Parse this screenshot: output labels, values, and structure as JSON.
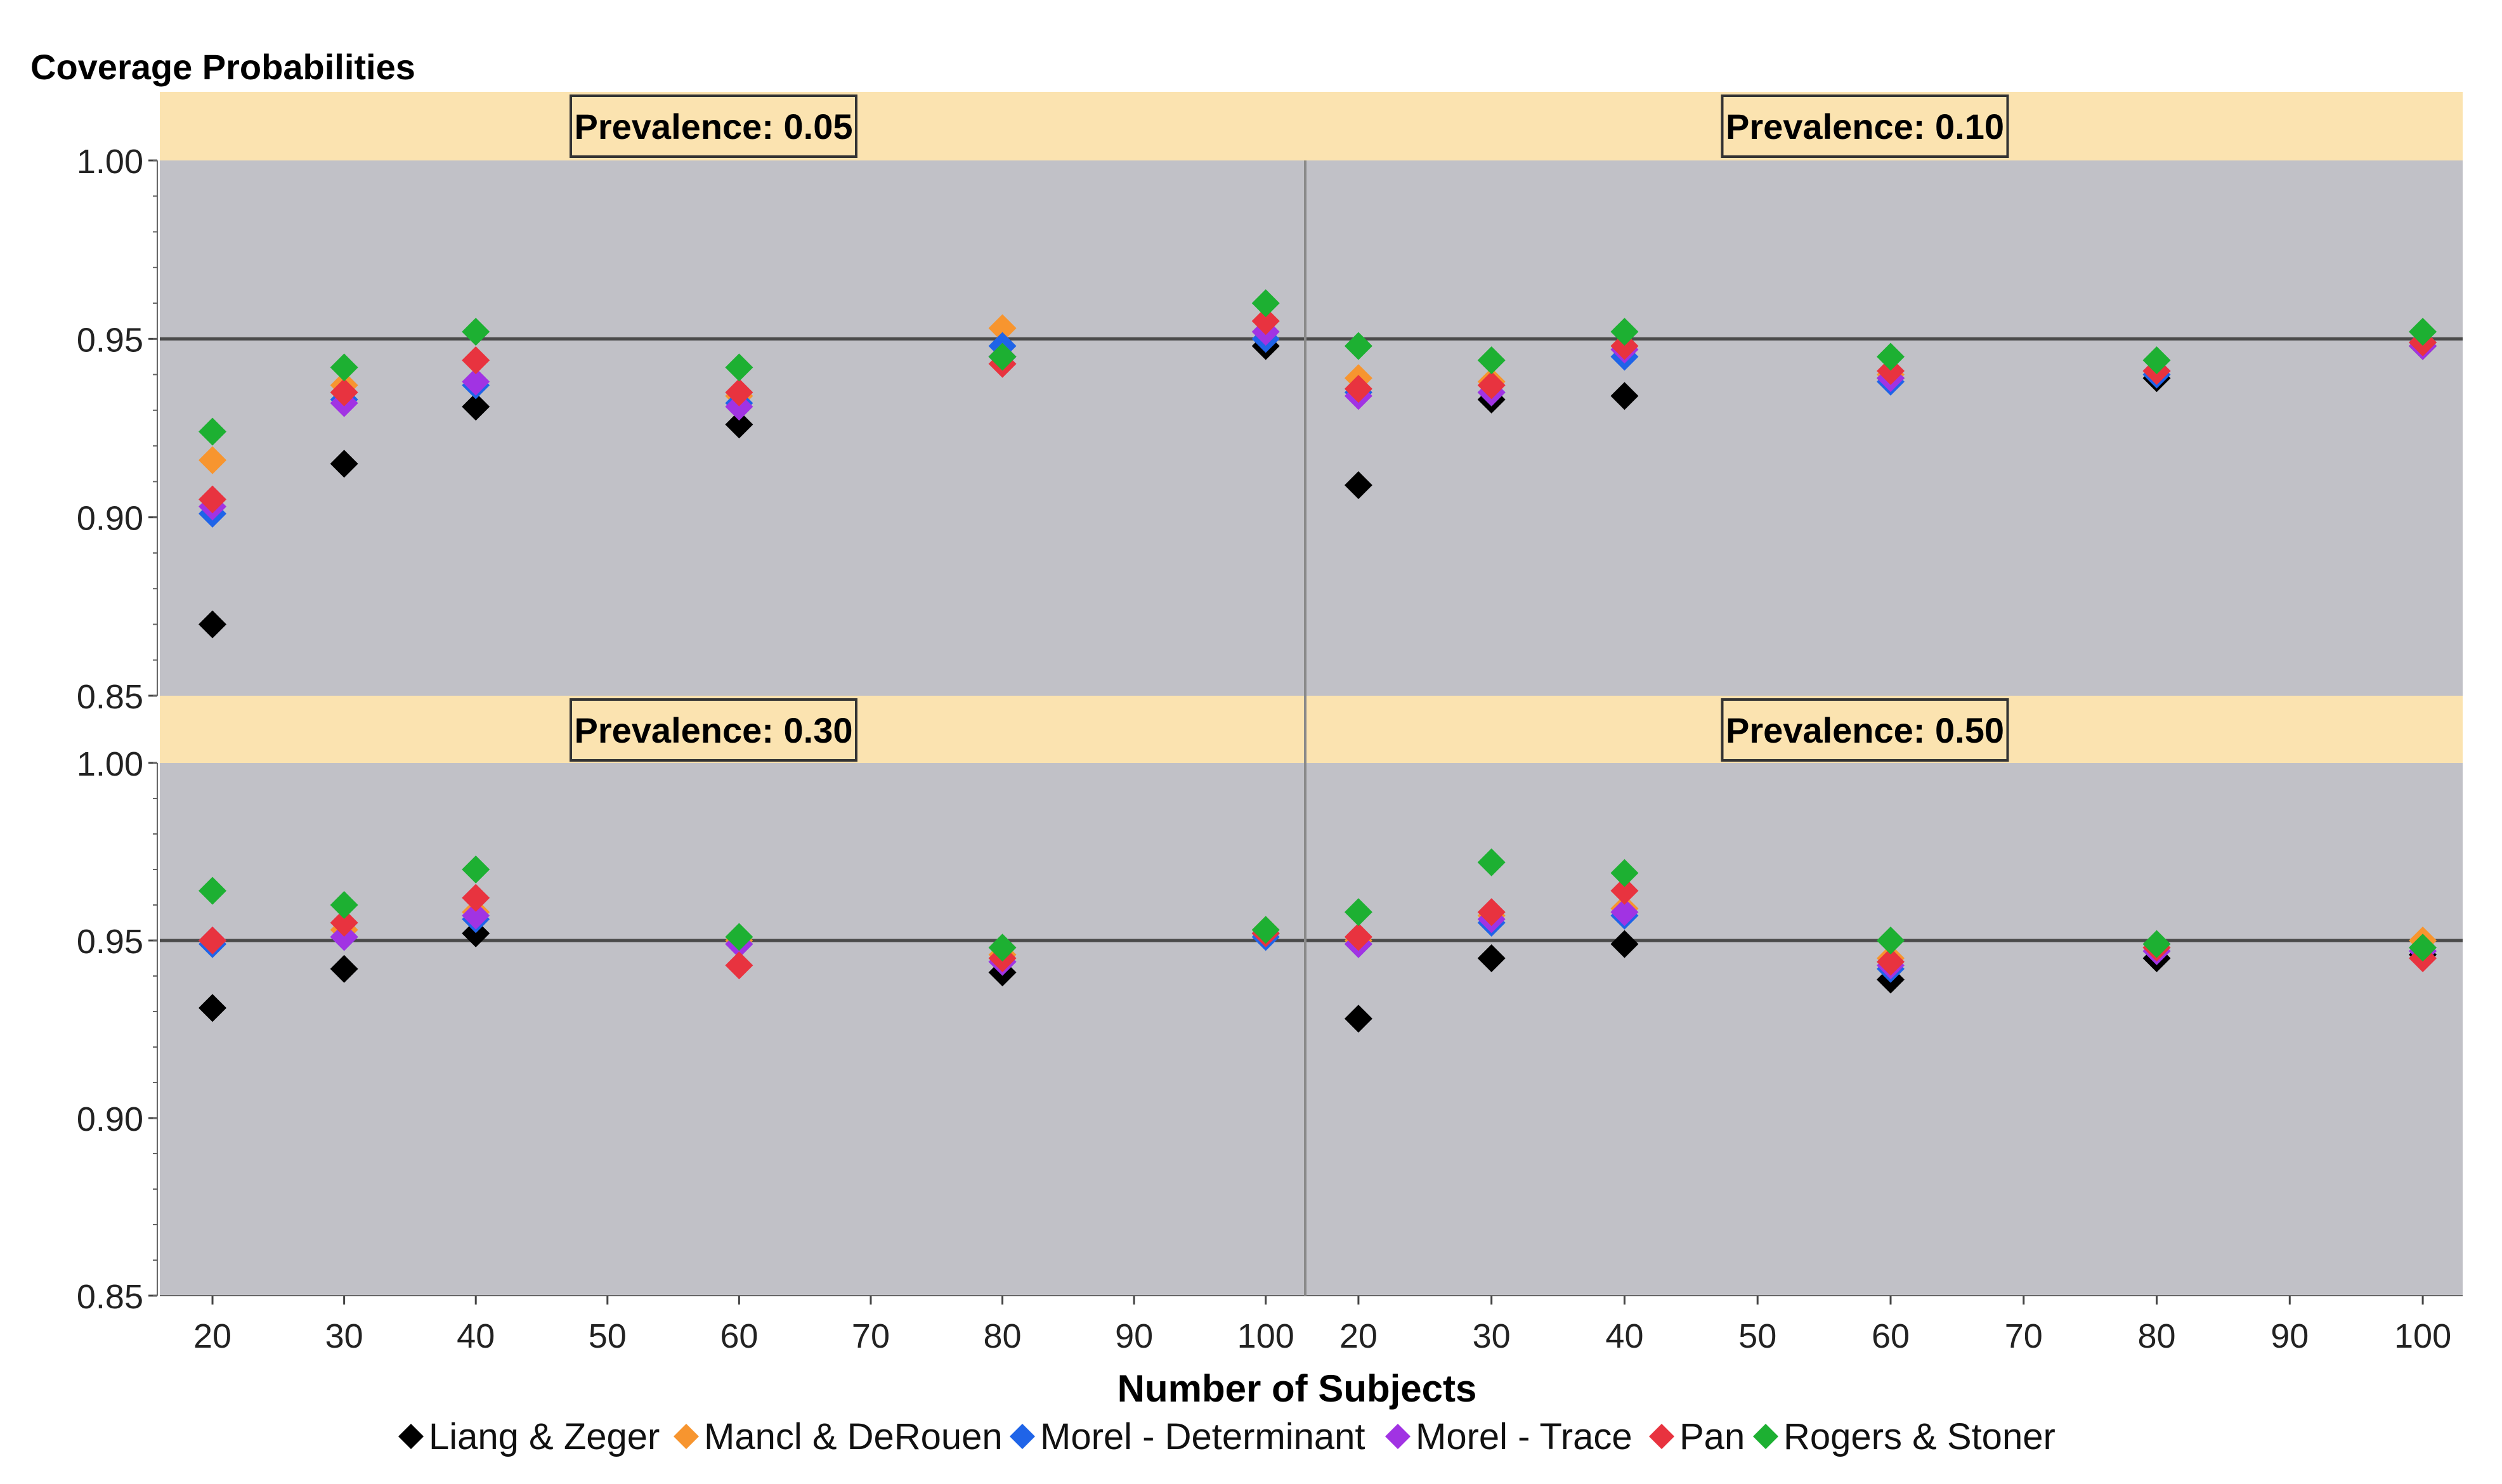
{
  "chart_data": {
    "type": "scatter",
    "title": "Coverage Probabilities",
    "xlabel": "Number of Subjects",
    "ylabel": "Coverage Probabilities",
    "x_ticks": [
      20,
      30,
      40,
      50,
      60,
      70,
      80,
      90,
      100
    ],
    "xlim": [
      16,
      103
    ],
    "y_ticks": [
      "0.85",
      "0.90",
      "0.95",
      "1.00"
    ],
    "ylim": [
      0.85,
      1.0
    ],
    "reference_line": 0.95,
    "x": [
      20,
      30,
      40,
      60,
      80,
      100
    ],
    "legend": [
      {
        "name": "Liang & Zeger",
        "color": "#000000"
      },
      {
        "name": "Mancl & DeRouen",
        "color": "#F7952F"
      },
      {
        "name": "Morel - Determinant",
        "color": "#1F64E8"
      },
      {
        "name": "Morel - Trace",
        "color": "#A133E3"
      },
      {
        "name": "Pan",
        "color": "#E8333F"
      },
      {
        "name": "Rogers & Stoner",
        "color": "#1DB032"
      }
    ],
    "panels": [
      {
        "label": "Prevalence:  0.05",
        "series": [
          {
            "name": "Liang & Zeger",
            "values": [
              0.87,
              0.915,
              0.931,
              0.926,
              0.945,
              0.948
            ]
          },
          {
            "name": "Mancl & DeRouen",
            "values": [
              0.916,
              0.937,
              0.944,
              0.934,
              0.953,
              0.955
            ]
          },
          {
            "name": "Morel - Determinant",
            "values": [
              0.901,
              0.933,
              0.937,
              0.932,
              0.948,
              0.95
            ]
          },
          {
            "name": "Morel - Trace",
            "values": [
              0.903,
              0.932,
              0.938,
              0.931,
              0.945,
              0.952
            ]
          },
          {
            "name": "Pan",
            "values": [
              0.905,
              0.935,
              0.944,
              0.935,
              0.943,
              0.955
            ]
          },
          {
            "name": "Rogers & Stoner",
            "values": [
              0.924,
              0.942,
              0.952,
              0.942,
              0.945,
              0.96
            ]
          }
        ]
      },
      {
        "label": "Prevalence:  0.10",
        "series": [
          {
            "name": "Liang & Zeger",
            "values": [
              0.909,
              0.933,
              0.934,
              0.939,
              0.939,
              0.948
            ]
          },
          {
            "name": "Mancl & DeRouen",
            "values": [
              0.939,
              0.938,
              0.948,
              0.94,
              0.941,
              0.949
            ]
          },
          {
            "name": "Morel - Determinant",
            "values": [
              0.935,
              0.935,
              0.945,
              0.938,
              0.94,
              0.949
            ]
          },
          {
            "name": "Morel - Trace",
            "values": [
              0.934,
              0.935,
              0.947,
              0.939,
              0.941,
              0.948
            ]
          },
          {
            "name": "Pan",
            "values": [
              0.936,
              0.937,
              0.948,
              0.941,
              0.941,
              0.949
            ]
          },
          {
            "name": "Rogers & Stoner",
            "values": [
              0.948,
              0.944,
              0.952,
              0.945,
              0.944,
              0.952
            ]
          }
        ]
      },
      {
        "label": "Prevalence:  0.30",
        "series": [
          {
            "name": "Liang & Zeger",
            "values": [
              0.931,
              0.942,
              0.952,
              0.95,
              0.941,
              0.952
            ]
          },
          {
            "name": "Mancl & DeRouen",
            "values": [
              0.95,
              0.953,
              0.958,
              0.95,
              0.946,
              0.953
            ]
          },
          {
            "name": "Morel - Determinant",
            "values": [
              0.949,
              0.951,
              0.956,
              0.949,
              0.944,
              0.951
            ]
          },
          {
            "name": "Morel - Trace",
            "values": [
              0.95,
              0.951,
              0.957,
              0.949,
              0.944,
              0.952
            ]
          },
          {
            "name": "Pan",
            "values": [
              0.95,
              0.955,
              0.962,
              0.943,
              0.945,
              0.952
            ]
          },
          {
            "name": "Rogers & Stoner",
            "values": [
              0.964,
              0.96,
              0.97,
              0.951,
              0.948,
              0.953
            ]
          }
        ]
      },
      {
        "label": "Prevalence:  0.50",
        "series": [
          {
            "name": "Liang & Zeger",
            "values": [
              0.928,
              0.945,
              0.949,
              0.939,
              0.945,
              0.946
            ]
          },
          {
            "name": "Mancl & DeRouen",
            "values": [
              0.95,
              0.957,
              0.959,
              0.945,
              0.948,
              0.95
            ]
          },
          {
            "name": "Morel - Determinant",
            "values": [
              0.949,
              0.955,
              0.957,
              0.942,
              0.947,
              0.947
            ]
          },
          {
            "name": "Morel - Trace",
            "values": [
              0.949,
              0.956,
              0.958,
              0.943,
              0.947,
              0.947
            ]
          },
          {
            "name": "Pan",
            "values": [
              0.951,
              0.958,
              0.964,
              0.944,
              0.948,
              0.945
            ]
          },
          {
            "name": "Rogers & Stoner",
            "values": [
              0.958,
              0.972,
              0.969,
              0.95,
              0.949,
              0.948
            ]
          }
        ]
      }
    ]
  }
}
